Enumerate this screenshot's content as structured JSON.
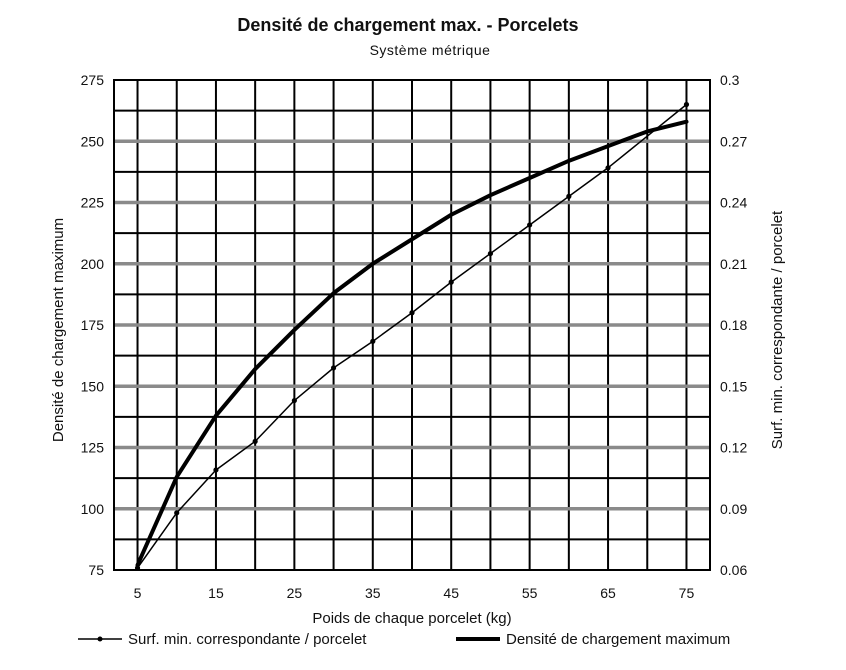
{
  "chart_data": {
    "type": "line",
    "title": "Densité de chargement max. - Porcelets",
    "subtitle": "Système métrique",
    "xlabel": "Poids de chaque porcelet (kg)",
    "ylabel_left": "Densité de chargement maximum",
    "ylabel_right": "Surf. min. correspondante / porcelet",
    "x_ticks": [
      "5",
      "15",
      "25",
      "35",
      "45",
      "55",
      "65",
      "75"
    ],
    "y_left_ticks": [
      "75",
      "100",
      "125",
      "150",
      "175",
      "200",
      "225",
      "250",
      "275"
    ],
    "y_right_ticks": [
      "0.06",
      "0.09",
      "0.12",
      "0.15",
      "0.18",
      "0.21",
      "0.24",
      "0.27",
      "0.3"
    ],
    "xlim": [
      2,
      78
    ],
    "ylim_left": [
      75,
      275
    ],
    "ylim_right": [
      0.06,
      0.3
    ],
    "grid": true,
    "legend_position": "bottom",
    "series": [
      {
        "name": "Surf. min. correspondante / porcelet",
        "axis": "right",
        "style": "thin-with-markers",
        "x": [
          5,
          10,
          15,
          20,
          25,
          30,
          35,
          40,
          45,
          50,
          55,
          60,
          65,
          75
        ],
        "values": [
          0.061,
          0.088,
          0.109,
          0.123,
          0.143,
          0.159,
          0.172,
          0.186,
          0.201,
          0.215,
          0.229,
          0.243,
          0.257,
          0.288
        ]
      },
      {
        "name": "Densité de chargement maximum",
        "axis": "left",
        "style": "thick",
        "x": [
          5,
          10,
          15,
          20,
          25,
          30,
          35,
          40,
          45,
          50,
          55,
          60,
          65,
          70,
          75
        ],
        "values": [
          77,
          113,
          138,
          157,
          173,
          188,
          200,
          210,
          220,
          228,
          235,
          242,
          248,
          254,
          258
        ]
      }
    ]
  }
}
